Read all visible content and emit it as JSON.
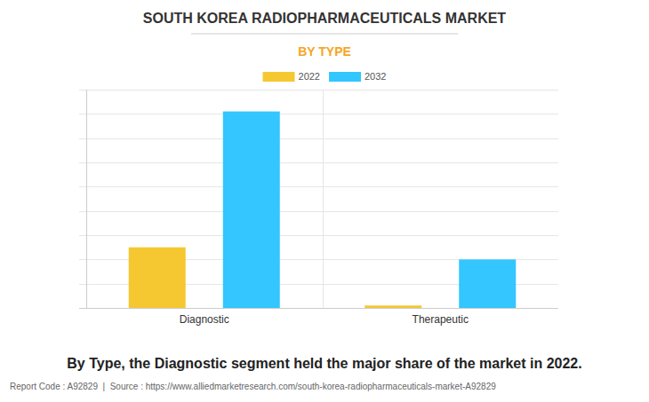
{
  "chart_data": {
    "type": "bar",
    "title": "SOUTH KOREA RADIOPHARMACEUTICALS MARKET",
    "subtitle": "BY TYPE",
    "categories": [
      "Diagnostic",
      "Therapeutic"
    ],
    "series": [
      {
        "name": "2022",
        "color": "#f5c832",
        "values": [
          2.5,
          0.1
        ]
      },
      {
        "name": "2032",
        "color": "#33c6ff",
        "values": [
          8.1,
          2.0
        ]
      }
    ],
    "ylim": [
      0,
      9
    ],
    "yticks": [
      0,
      1,
      2,
      3,
      4,
      5,
      6,
      7,
      8,
      9
    ],
    "grid": true,
    "tick_labels": "x",
    "legend": "top",
    "caption": "By Type, the Diagnostic segment held the major share of the market in 2022.",
    "source": "Report Code : A92829  |  Source : https://www.alliedmarketresearch.com/south-korea-radiopharmaceuticals-market-A92829"
  }
}
